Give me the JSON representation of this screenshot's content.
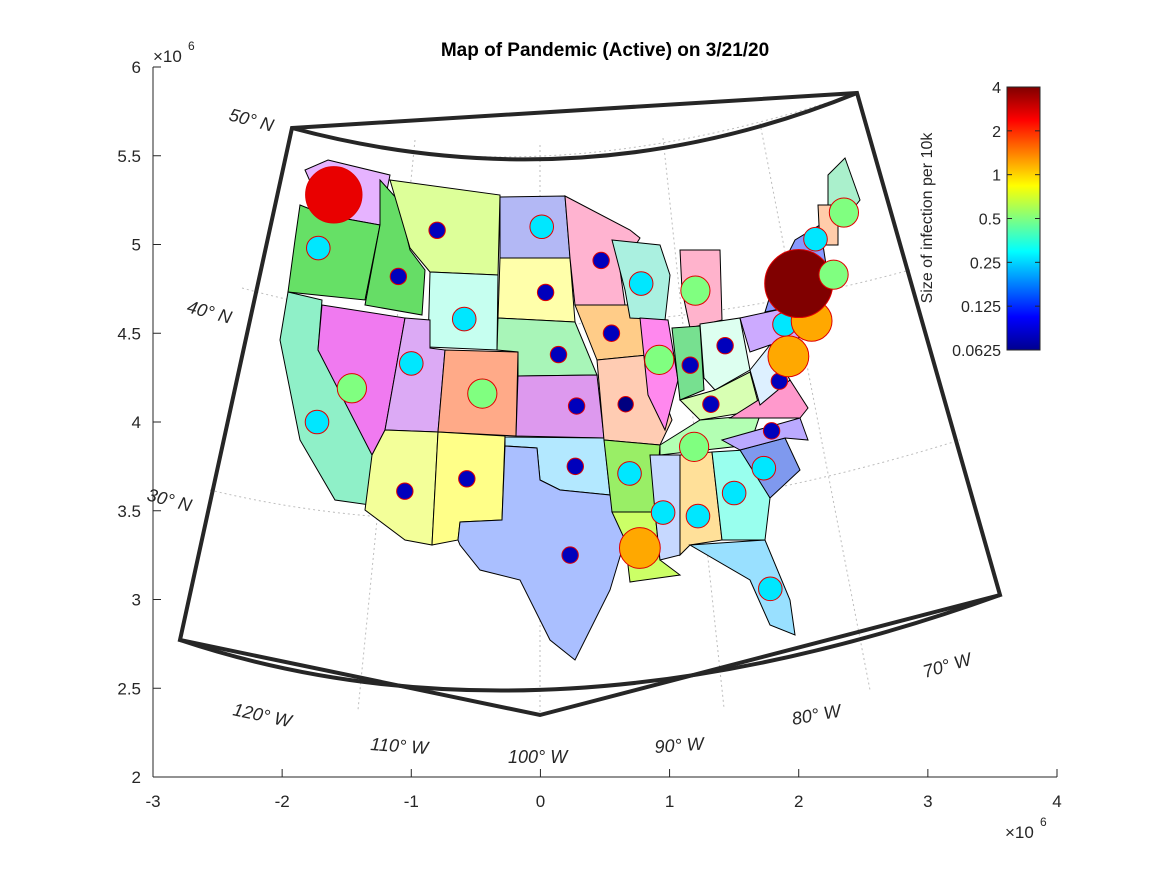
{
  "chart_data": {
    "type": "map",
    "title": "Map of Pandemic (Active) on 3/21/20",
    "x_ticks": [
      "-3",
      "-2",
      "-1",
      "0",
      "1",
      "2",
      "3",
      "4"
    ],
    "y_ticks": [
      "2",
      "2.5",
      "3",
      "3.5",
      "4",
      "4.5",
      "5",
      "5.5",
      "6"
    ],
    "x_exponent": "×10",
    "y_exponent": "×10",
    "exponent_power": "6",
    "xlim": [
      -3,
      4
    ],
    "ylim": [
      2,
      6
    ],
    "latitude_labels": [
      "50° N",
      "40° N",
      "30° N"
    ],
    "longitude_labels": [
      "120° W",
      "110° W",
      "100° W",
      "90° W",
      "80° W",
      "70° W"
    ],
    "colorbar": {
      "label": "Size of infection per 10k",
      "ticks": [
        "4",
        "2",
        "1",
        "0.5",
        "0.25",
        "0.125",
        "0.0625"
      ],
      "scale": "log2",
      "range": [
        0.0625,
        4
      ],
      "colormap": "jet"
    },
    "bubbles": [
      {
        "x": -1.6,
        "y": 5.28,
        "value": 2.6
      },
      {
        "x": -1.72,
        "y": 4.98,
        "value": 0.27
      },
      {
        "x": -1.73,
        "y": 4.0,
        "value": 0.27
      },
      {
        "x": -1.46,
        "y": 4.19,
        "value": 0.5
      },
      {
        "x": -1.1,
        "y": 4.82,
        "value": 0.08
      },
      {
        "x": -0.8,
        "y": 5.08,
        "value": 0.08
      },
      {
        "x": -1.0,
        "y": 4.33,
        "value": 0.27
      },
      {
        "x": -0.59,
        "y": 4.58,
        "value": 0.27
      },
      {
        "x": -0.45,
        "y": 4.16,
        "value": 0.5
      },
      {
        "x": -1.05,
        "y": 3.61,
        "value": 0.08
      },
      {
        "x": -0.57,
        "y": 3.68,
        "value": 0.08
      },
      {
        "x": 0.01,
        "y": 5.1,
        "value": 0.27
      },
      {
        "x": 0.04,
        "y": 4.73,
        "value": 0.08
      },
      {
        "x": 0.14,
        "y": 4.38,
        "value": 0.08
      },
      {
        "x": 0.28,
        "y": 4.09,
        "value": 0.08
      },
      {
        "x": 0.27,
        "y": 3.75,
        "value": 0.08
      },
      {
        "x": 0.23,
        "y": 3.25,
        "value": 0.08
      },
      {
        "x": 0.47,
        "y": 4.91,
        "value": 0.08
      },
      {
        "x": 0.55,
        "y": 4.5,
        "value": 0.08
      },
      {
        "x": 0.66,
        "y": 4.1,
        "value": 0.06
      },
      {
        "x": 0.78,
        "y": 4.78,
        "value": 0.27
      },
      {
        "x": 0.92,
        "y": 4.35,
        "value": 0.5
      },
      {
        "x": 0.69,
        "y": 3.71,
        "value": 0.27
      },
      {
        "x": 0.77,
        "y": 3.29,
        "value": 1.2
      },
      {
        "x": 0.95,
        "y": 3.49,
        "value": 0.27
      },
      {
        "x": 1.2,
        "y": 4.74,
        "value": 0.5
      },
      {
        "x": 1.16,
        "y": 4.32,
        "value": 0.08
      },
      {
        "x": 1.32,
        "y": 4.1,
        "value": 0.08
      },
      {
        "x": 1.19,
        "y": 3.86,
        "value": 0.5
      },
      {
        "x": 1.22,
        "y": 3.47,
        "value": 0.27
      },
      {
        "x": 1.5,
        "y": 3.6,
        "value": 0.27
      },
      {
        "x": 1.43,
        "y": 4.43,
        "value": 0.08
      },
      {
        "x": 1.73,
        "y": 3.74,
        "value": 0.27
      },
      {
        "x": 1.79,
        "y": 3.95,
        "value": 0.08
      },
      {
        "x": 1.85,
        "y": 4.23,
        "value": 0.08
      },
      {
        "x": 1.92,
        "y": 4.37,
        "value": 1.2
      },
      {
        "x": 1.78,
        "y": 3.06,
        "value": 0.27
      },
      {
        "x": 1.89,
        "y": 4.55,
        "value": 0.27
      },
      {
        "x": 2.1,
        "y": 4.57,
        "value": 1.2
      },
      {
        "x": 2.0,
        "y": 4.78,
        "value": 4
      },
      {
        "x": 2.13,
        "y": 5.03,
        "value": 0.27
      },
      {
        "x": 2.35,
        "y": 5.18,
        "value": 0.5
      },
      {
        "x": 2.27,
        "y": 4.83,
        "value": 0.5
      }
    ]
  }
}
